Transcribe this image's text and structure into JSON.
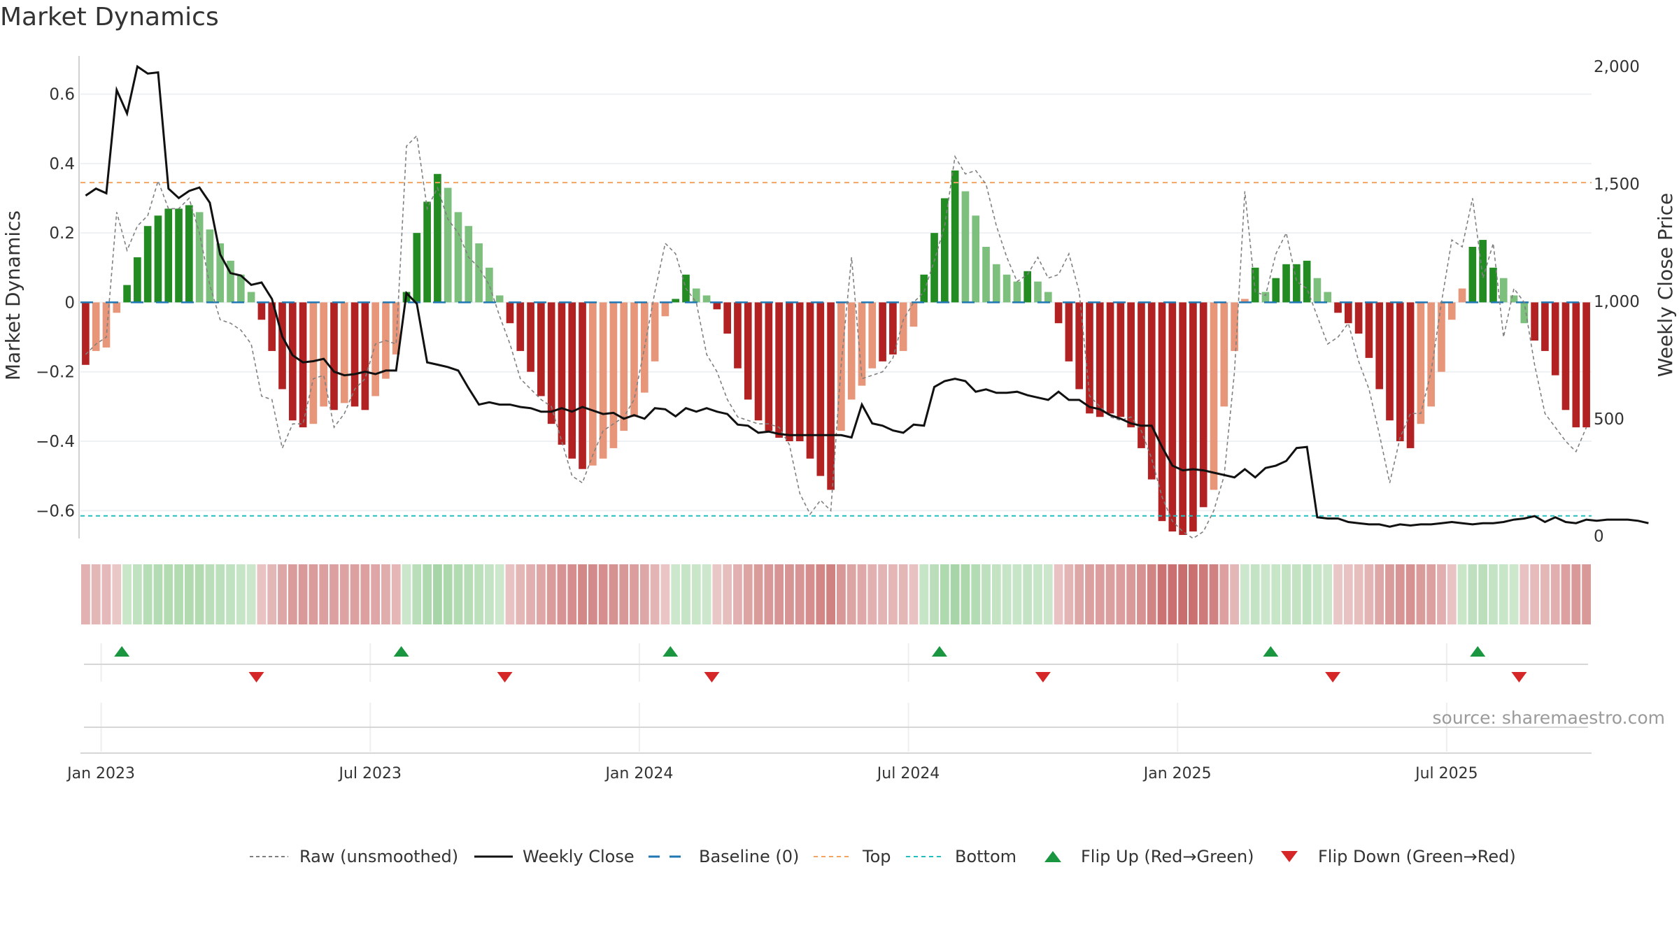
{
  "chart_data": {
    "type": "bar",
    "title": "Market Dynamics",
    "source": "source: sharemaestro.com",
    "ylabel_left": "Market Dynamics",
    "ylabel_right": "Weekly Close Price",
    "y_left_ticks": [
      0.6,
      0.4,
      0.2,
      0,
      -0.2,
      -0.4,
      -0.6
    ],
    "y_left_tick_labels": [
      "0.6",
      "0.4",
      "0.2",
      "0",
      "−0.2",
      "−0.4",
      "−0.6"
    ],
    "ylim_left": [
      -0.68,
      0.72
    ],
    "y_right_ticks": [
      2000,
      1500,
      1000,
      500,
      0
    ],
    "y_right_tick_labels": [
      "2,000",
      "1,500",
      "1,000",
      "500",
      "0"
    ],
    "ylim_right": [
      -10,
      2060
    ],
    "x_ticks": [
      "Jan 2023",
      "Jul 2023",
      "Jan 2024",
      "Jul 2024",
      "Jan 2025",
      "Jul 2025"
    ],
    "top_threshold": 0.345,
    "bottom_threshold": -0.615,
    "grid": true,
    "legend_position": "bottom",
    "legend": [
      "Raw (unsmoothed)",
      "Weekly Close",
      "Baseline (0)",
      "Top",
      "Bottom",
      "Flip Up (Red→Green)",
      "Flip Down (Green→Red)"
    ],
    "colors": {
      "strong_green": "#228b22",
      "light_green": "#7dbf7d",
      "strong_red": "#b22222",
      "light_red": "#e8967a",
      "baseline": "#1f77b4",
      "top": "#f4a460",
      "bottom": "#20c0c0",
      "flip_up": "#1a9641",
      "flip_down": "#d62728",
      "raw": "#808080",
      "close": "#111111"
    },
    "bar_values": [
      -0.18,
      -0.14,
      -0.13,
      -0.03,
      0.05,
      0.13,
      0.22,
      0.25,
      0.27,
      0.27,
      0.28,
      0.26,
      0.21,
      0.17,
      0.12,
      0.08,
      0.03,
      -0.05,
      -0.14,
      -0.25,
      -0.34,
      -0.36,
      -0.35,
      -0.3,
      -0.31,
      -0.29,
      -0.3,
      -0.31,
      -0.27,
      -0.22,
      -0.15,
      0.03,
      0.2,
      0.29,
      0.37,
      0.33,
      0.26,
      0.22,
      0.17,
      0.1,
      0.02,
      -0.06,
      -0.14,
      -0.2,
      -0.27,
      -0.35,
      -0.41,
      -0.45,
      -0.48,
      -0.47,
      -0.45,
      -0.42,
      -0.37,
      -0.33,
      -0.26,
      -0.17,
      -0.04,
      0.01,
      0.08,
      0.04,
      0.02,
      -0.02,
      -0.09,
      -0.19,
      -0.28,
      -0.34,
      -0.37,
      -0.39,
      -0.4,
      -0.4,
      -0.45,
      -0.5,
      -0.54,
      -0.37,
      -0.28,
      -0.24,
      -0.19,
      -0.17,
      -0.15,
      -0.14,
      -0.07,
      0.08,
      0.2,
      0.3,
      0.38,
      0.32,
      0.25,
      0.16,
      0.11,
      0.08,
      0.06,
      0.09,
      0.06,
      0.03,
      -0.06,
      -0.17,
      -0.25,
      -0.32,
      -0.33,
      -0.32,
      -0.33,
      -0.36,
      -0.42,
      -0.51,
      -0.63,
      -0.66,
      -0.67,
      -0.66,
      -0.59,
      -0.54,
      -0.3,
      -0.14,
      0.01,
      0.1,
      0.03,
      0.07,
      0.11,
      0.11,
      0.12,
      0.07,
      0.03,
      -0.03,
      -0.06,
      -0.09,
      -0.16,
      -0.25,
      -0.34,
      -0.4,
      -0.42,
      -0.35,
      -0.3,
      -0.2,
      -0.05,
      0.04,
      0.16,
      0.18,
      0.1,
      0.07,
      0.02,
      -0.06,
      -0.11,
      -0.14,
      -0.21,
      -0.31,
      -0.36,
      -0.36
    ],
    "bar_colors": [
      "R",
      "r",
      "r",
      "r",
      "G",
      "G",
      "G",
      "G",
      "G",
      "G",
      "G",
      "g",
      "g",
      "g",
      "g",
      "g",
      "g",
      "R",
      "R",
      "R",
      "R",
      "R",
      "r",
      "r",
      "R",
      "r",
      "R",
      "R",
      "r",
      "r",
      "r",
      "G",
      "G",
      "G",
      "G",
      "g",
      "g",
      "g",
      "g",
      "g",
      "g",
      "R",
      "R",
      "R",
      "R",
      "R",
      "R",
      "R",
      "R",
      "r",
      "r",
      "r",
      "r",
      "r",
      "r",
      "r",
      "r",
      "G",
      "G",
      "g",
      "g",
      "R",
      "R",
      "R",
      "R",
      "R",
      "R",
      "R",
      "R",
      "R",
      "R",
      "R",
      "R",
      "r",
      "r",
      "r",
      "r",
      "R",
      "R",
      "r",
      "r",
      "G",
      "G",
      "G",
      "G",
      "g",
      "g",
      "g",
      "g",
      "g",
      "g",
      "G",
      "g",
      "g",
      "R",
      "R",
      "R",
      "R",
      "R",
      "R",
      "R",
      "R",
      "R",
      "R",
      "R",
      "R",
      "R",
      "R",
      "R",
      "r",
      "r",
      "r",
      "r",
      "G",
      "g",
      "G",
      "G",
      "G",
      "G",
      "g",
      "g",
      "R",
      "R",
      "R",
      "R",
      "R",
      "R",
      "R",
      "R",
      "r",
      "r",
      "r",
      "r",
      "r",
      "G",
      "G",
      "G",
      "g",
      "g",
      "g",
      "R",
      "R",
      "R",
      "R",
      "R",
      "R",
      "R"
    ],
    "close_prices": [
      1450,
      1480,
      1460,
      1900,
      1800,
      2000,
      1970,
      1975,
      1480,
      1440,
      1470,
      1485,
      1420,
      1200,
      1120,
      1110,
      1070,
      1080,
      1010,
      850,
      770,
      740,
      745,
      755,
      700,
      685,
      690,
      700,
      690,
      705,
      705,
      1035,
      990,
      740,
      730,
      720,
      705,
      630,
      560,
      570,
      560,
      560,
      550,
      545,
      530,
      530,
      545,
      530,
      550,
      535,
      520,
      525,
      500,
      515,
      500,
      545,
      540,
      510,
      545,
      530,
      545,
      530,
      520,
      475,
      470,
      440,
      445,
      435,
      430,
      430,
      430,
      430,
      430,
      430,
      420,
      560,
      480,
      470,
      450,
      440,
      475,
      470,
      635,
      660,
      670,
      660,
      615,
      625,
      610,
      610,
      615,
      600,
      590,
      580,
      615,
      580,
      580,
      550,
      540,
      515,
      500,
      480,
      470,
      470,
      380,
      300,
      280,
      285,
      280,
      270,
      260,
      250,
      285,
      250,
      290,
      300,
      320,
      375,
      380,
      80,
      75,
      75,
      60,
      55,
      50,
      50,
      40,
      50,
      45,
      50,
      50,
      55,
      60,
      55,
      50,
      55,
      55,
      60,
      70,
      75,
      85,
      60,
      80,
      60,
      55,
      70,
      65,
      70,
      70,
      70,
      65,
      55
    ],
    "raw_values": [
      -0.15,
      -0.12,
      -0.1,
      0.26,
      0.15,
      0.22,
      0.25,
      0.35,
      0.27,
      0.27,
      0.3,
      0.2,
      0.05,
      -0.05,
      -0.06,
      -0.08,
      -0.12,
      -0.27,
      -0.28,
      -0.42,
      -0.35,
      -0.35,
      -0.22,
      -0.21,
      -0.36,
      -0.32,
      -0.25,
      -0.22,
      -0.12,
      -0.11,
      -0.12,
      0.45,
      0.48,
      0.27,
      0.33,
      0.24,
      0.2,
      0.13,
      0.1,
      0.05,
      -0.04,
      -0.12,
      -0.22,
      -0.25,
      -0.28,
      -0.3,
      -0.4,
      -0.5,
      -0.52,
      -0.44,
      -0.37,
      -0.35,
      -0.33,
      -0.28,
      -0.13,
      0.03,
      0.17,
      0.14,
      0.04,
      0.0,
      -0.15,
      -0.2,
      -0.28,
      -0.33,
      -0.34,
      -0.35,
      -0.35,
      -0.36,
      -0.41,
      -0.55,
      -0.61,
      -0.57,
      -0.6,
      -0.18,
      0.13,
      -0.22,
      -0.21,
      -0.2,
      -0.16,
      -0.05,
      0.0,
      0.03,
      0.12,
      0.22,
      0.42,
      0.37,
      0.38,
      0.34,
      0.22,
      0.13,
      0.06,
      0.08,
      0.13,
      0.07,
      0.08,
      0.14,
      0.03,
      -0.27,
      -0.3,
      -0.33,
      -0.34,
      -0.33,
      -0.37,
      -0.45,
      -0.56,
      -0.63,
      -0.66,
      -0.68,
      -0.66,
      -0.6,
      -0.5,
      -0.2,
      0.32,
      0.03,
      0.02,
      0.14,
      0.2,
      0.06,
      0.04,
      -0.04,
      -0.12,
      -0.1,
      -0.06,
      -0.17,
      -0.25,
      -0.38,
      -0.52,
      -0.39,
      -0.32,
      -0.32,
      -0.2,
      0.0,
      0.18,
      0.16,
      0.3,
      0.07,
      0.17,
      -0.1,
      0.04,
      0.0,
      -0.18,
      -0.32,
      -0.36,
      -0.4,
      -0.43,
      -0.36
    ]
  },
  "flip_up_weeks": [
    4,
    31,
    57,
    83,
    115,
    135
  ],
  "flip_down_weeks": [
    17,
    41,
    61,
    93,
    121,
    139
  ],
  "heat_strips": [
    {
      "label": "",
      "row": "flips"
    },
    {
      "label": "",
      "row": "empty"
    }
  ]
}
